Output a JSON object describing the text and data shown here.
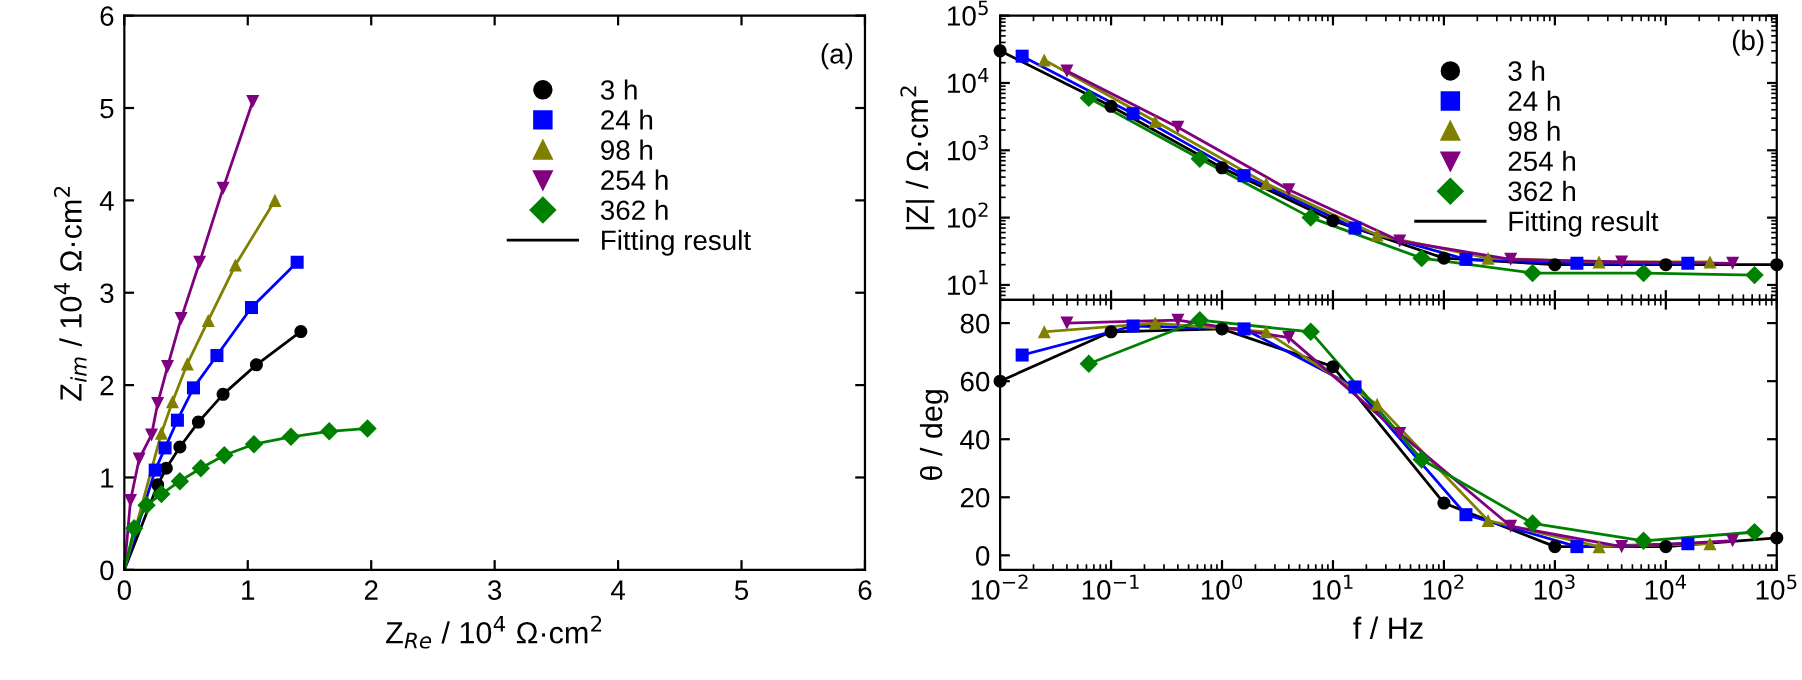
{
  "chart_data": [
    {
      "type": "scatter",
      "xlabel": "Z$_{Re}$ / 10$^{4}$ Ω·cm$^{2}$",
      "ylabel": "Z$_{im}$ / 10$^{4}$ Ω·cm$^{2}$",
      "xlim": [
        0,
        6
      ],
      "ylim": [
        0,
        6
      ],
      "xticks": [
        0,
        1,
        2,
        3,
        4,
        5,
        6
      ],
      "yticks": [
        0,
        1,
        2,
        3,
        4,
        5,
        6
      ],
      "legend": "top right",
      "grid": false,
      "annotations": [
        "(a)"
      ],
      "series": [
        {
          "name": "3 h",
          "color": "#000000",
          "marker": "circle",
          "x": [
            0.27,
            0.34,
            0.45,
            0.6,
            0.8,
            1.07,
            1.43
          ],
          "values": [
            0.92,
            1.1,
            1.33,
            1.6,
            1.9,
            2.22,
            2.58
          ]
        },
        {
          "name": "24 h",
          "color": "#0000ff",
          "marker": "square",
          "x": [
            0.25,
            0.33,
            0.43,
            0.56,
            0.75,
            1.03,
            1.4
          ],
          "values": [
            1.08,
            1.32,
            1.62,
            1.97,
            2.32,
            2.84,
            3.33
          ]
        },
        {
          "name": "98 h",
          "color": "#808000",
          "marker": "triangle",
          "x": [
            0.3,
            0.39,
            0.51,
            0.68,
            0.9,
            1.22
          ],
          "values": [
            1.48,
            1.82,
            2.23,
            2.7,
            3.3,
            4.0
          ]
        },
        {
          "name": "254 h",
          "color": "#800080",
          "marker": "triangle_down",
          "x": [
            0.05,
            0.12,
            0.22,
            0.27,
            0.35,
            0.46,
            0.61,
            0.8,
            1.04
          ],
          "values": [
            0.75,
            1.2,
            1.46,
            1.8,
            2.2,
            2.72,
            3.33,
            4.13,
            5.07
          ]
        },
        {
          "name": "362 h",
          "color": "#008000",
          "marker": "diamond",
          "x": [
            0.08,
            0.18,
            0.3,
            0.45,
            0.62,
            0.81,
            1.05,
            1.35,
            1.66,
            1.97
          ],
          "values": [
            0.45,
            0.7,
            0.82,
            0.96,
            1.1,
            1.24,
            1.36,
            1.44,
            1.5,
            1.53
          ]
        },
        {
          "name": "Fitting result",
          "type": "line",
          "color": "#000000",
          "x": [
            0,
            0.27,
            0.34,
            0.45,
            0.6,
            0.8,
            1.07,
            1.43
          ],
          "values": [
            0,
            0.92,
            1.1,
            1.33,
            1.6,
            1.9,
            2.22,
            2.58
          ]
        },
        {
          "type": "line",
          "color": "#0000ff",
          "x": [
            0,
            0.25,
            0.33,
            0.43,
            0.56,
            0.75,
            1.03,
            1.4
          ],
          "values": [
            0,
            1.08,
            1.32,
            1.62,
            1.97,
            2.32,
            2.84,
            3.33
          ]
        },
        {
          "type": "line",
          "color": "#808000",
          "x": [
            0,
            0.3,
            0.39,
            0.51,
            0.68,
            0.9,
            1.22
          ],
          "values": [
            0,
            1.48,
            1.82,
            2.23,
            2.7,
            3.3,
            4.0
          ]
        },
        {
          "type": "line",
          "color": "#800080",
          "x": [
            0,
            0.05,
            0.12,
            0.22,
            0.27,
            0.35,
            0.46,
            0.61,
            0.8,
            1.04
          ],
          "values": [
            0,
            0.75,
            1.2,
            1.46,
            1.8,
            2.2,
            2.72,
            3.33,
            4.13,
            5.07
          ]
        },
        {
          "type": "line",
          "color": "#008000",
          "x": [
            0,
            0.08,
            0.18,
            0.3,
            0.45,
            0.62,
            0.81,
            1.05,
            1.35,
            1.66,
            1.97
          ],
          "values": [
            0,
            0.45,
            0.7,
            0.82,
            0.96,
            1.1,
            1.24,
            1.36,
            1.44,
            1.5,
            1.53
          ]
        }
      ]
    },
    {
      "type": "scatter",
      "ylabel": "|Z| / Ω·cm$^{2}$",
      "log": "xy",
      "xlim": [
        0.01,
        100000
      ],
      "ylim": [
        6,
        100000
      ],
      "yticks": [
        {
          "value": 10,
          "label": "10$^{1}$"
        },
        {
          "value": 100,
          "label": "10$^{2}$"
        },
        {
          "value": 1000,
          "label": "10$^{3}$"
        },
        {
          "value": 10000,
          "label": "10$^{4}$"
        },
        {
          "value": 100000,
          "label": "10$^{5}$"
        }
      ],
      "tick_labels": "y",
      "legend": "top right",
      "grid": false,
      "annotations": [
        "(b)"
      ],
      "series": [
        {
          "name": "3 h",
          "color": "#000000",
          "marker": "circle",
          "x": [
            0.01,
            0.1,
            1,
            10,
            100,
            1000,
            10000,
            100000
          ],
          "values": [
            30000,
            4500,
            550,
            90,
            25,
            20,
            20,
            20
          ]
        },
        {
          "name": "24 h",
          "color": "#0000ff",
          "marker": "square",
          "x": [
            0.0158,
            0.158,
            1.58,
            15.8,
            158,
            1580,
            15800
          ],
          "values": [
            25000,
            3500,
            420,
            70,
            24,
            21,
            21
          ]
        },
        {
          "name": "98 h",
          "color": "#808000",
          "marker": "triangle",
          "x": [
            0.025,
            0.25,
            2.5,
            25,
            250,
            2500,
            25000
          ],
          "values": [
            22000,
            2700,
            320,
            55,
            25,
            22,
            22
          ]
        },
        {
          "name": "254 h",
          "color": "#800080",
          "marker": "triangle_down",
          "x": [
            0.04,
            0.4,
            4,
            40,
            400,
            4000,
            40000
          ],
          "values": [
            15000,
            2200,
            260,
            45,
            24,
            22,
            21
          ]
        },
        {
          "name": "362 h",
          "color": "#008000",
          "marker": "diamond",
          "x": [
            0.063,
            0.63,
            6.3,
            63,
            630,
            6300,
            63000
          ],
          "values": [
            6000,
            750,
            100,
            25,
            15,
            15,
            14
          ]
        },
        {
          "name": "Fitting result",
          "type": "line",
          "color": "#000000",
          "x": [
            0.01,
            0.1,
            1,
            10,
            100,
            1000,
            10000,
            100000
          ],
          "values": [
            30000,
            4500,
            550,
            90,
            25,
            20,
            20,
            20
          ]
        },
        {
          "type": "line",
          "color": "#0000ff",
          "x": [
            0.0158,
            0.158,
            1.58,
            15.8,
            158,
            1580,
            15800
          ],
          "values": [
            25000,
            3500,
            420,
            70,
            24,
            21,
            21
          ]
        },
        {
          "type": "line",
          "color": "#808000",
          "x": [
            0.025,
            0.25,
            2.5,
            25,
            250,
            2500,
            25000
          ],
          "values": [
            22000,
            2700,
            320,
            55,
            25,
            22,
            22
          ]
        },
        {
          "type": "line",
          "color": "#800080",
          "x": [
            0.04,
            0.4,
            4,
            40,
            400,
            4000,
            40000
          ],
          "values": [
            15000,
            2200,
            260,
            45,
            24,
            22,
            21
          ]
        },
        {
          "type": "line",
          "color": "#008000",
          "x": [
            0.063,
            0.63,
            6.3,
            63,
            630,
            6300,
            63000
          ],
          "values": [
            6000,
            750,
            100,
            25,
            15,
            15,
            14
          ]
        }
      ]
    },
    {
      "type": "scatter",
      "xlabel": "f / Hz",
      "ylabel": "θ / deg",
      "log": "x",
      "xlim": [
        0.01,
        100000
      ],
      "ylim": [
        -5,
        88
      ],
      "xticks": [
        {
          "value": 0.01,
          "label": "10$^{−2}$"
        },
        {
          "value": 0.1,
          "label": "10$^{−1}$"
        },
        {
          "value": 1,
          "label": "10$^{0}$"
        },
        {
          "value": 10,
          "label": "10$^{1}$"
        },
        {
          "value": 100,
          "label": "10$^{2}$"
        },
        {
          "value": 1000,
          "label": "10$^{3}$"
        },
        {
          "value": 10000,
          "label": "10$^{4}$"
        },
        {
          "value": 100000,
          "label": "10$^{5}$"
        }
      ],
      "yticks": [
        0,
        20,
        40,
        60,
        80
      ],
      "grid": false,
      "series": [
        {
          "color": "#000000",
          "marker": "circle",
          "x": [
            0.01,
            0.1,
            1,
            10,
            100,
            1000,
            10000,
            100000
          ],
          "values": [
            60,
            77,
            78,
            65,
            18,
            3,
            3,
            6
          ]
        },
        {
          "color": "#0000ff",
          "marker": "square",
          "x": [
            0.0158,
            0.158,
            1.58,
            15.8,
            158,
            1580,
            15800
          ],
          "values": [
            69,
            79,
            78,
            58,
            14,
            3,
            4
          ]
        },
        {
          "color": "#808000",
          "marker": "triangle",
          "x": [
            0.025,
            0.25,
            2.5,
            25,
            250,
            2500,
            25000
          ],
          "values": [
            77,
            80,
            77,
            52,
            12,
            3,
            4
          ]
        },
        {
          "color": "#800080",
          "marker": "triangle_down",
          "x": [
            0.04,
            0.4,
            4,
            40,
            400,
            4000,
            40000
          ],
          "values": [
            80,
            81,
            75,
            42,
            10,
            3,
            5
          ]
        },
        {
          "color": "#008000",
          "marker": "diamond",
          "x": [
            0.063,
            0.63,
            6.3,
            63,
            630,
            6300,
            63000
          ],
          "values": [
            66,
            81,
            77,
            33,
            11,
            5,
            8
          ]
        },
        {
          "type": "line",
          "color": "#000000",
          "x": [
            0.01,
            0.1,
            1,
            10,
            100,
            1000,
            10000,
            100000
          ],
          "values": [
            60,
            77,
            78,
            65,
            18,
            3,
            3,
            6
          ]
        },
        {
          "type": "line",
          "color": "#0000ff",
          "x": [
            0.0158,
            0.158,
            1.58,
            15.8,
            158,
            1580,
            15800
          ],
          "values": [
            69,
            79,
            78,
            58,
            14,
            3,
            4
          ]
        },
        {
          "type": "line",
          "color": "#808000",
          "x": [
            0.025,
            0.25,
            2.5,
            25,
            250,
            2500,
            25000
          ],
          "values": [
            77,
            80,
            77,
            52,
            12,
            3,
            4
          ]
        },
        {
          "type": "line",
          "color": "#800080",
          "x": [
            0.04,
            0.4,
            4,
            40,
            400,
            4000,
            40000
          ],
          "values": [
            80,
            81,
            75,
            42,
            10,
            3,
            5
          ]
        },
        {
          "type": "line",
          "color": "#008000",
          "x": [
            0.063,
            0.63,
            6.3,
            63,
            630,
            6300,
            63000
          ],
          "values": [
            66,
            81,
            77,
            33,
            11,
            5,
            8
          ]
        }
      ]
    }
  ]
}
